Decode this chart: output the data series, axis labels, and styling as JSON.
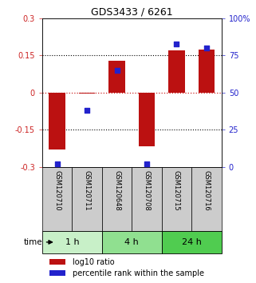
{
  "title": "GDS3433 / 6261",
  "samples": [
    "GSM120710",
    "GSM120711",
    "GSM120648",
    "GSM120708",
    "GSM120715",
    "GSM120716"
  ],
  "log10_ratio": [
    -0.23,
    -0.005,
    0.13,
    -0.215,
    0.17,
    0.175
  ],
  "percentile_rank": [
    2,
    38,
    65,
    2,
    83,
    80
  ],
  "ylim_left": [
    -0.3,
    0.3
  ],
  "ylim_right": [
    0,
    100
  ],
  "yticks_left": [
    -0.3,
    -0.15,
    0,
    0.15,
    0.3
  ],
  "yticks_right": [
    0,
    25,
    50,
    75,
    100
  ],
  "ytick_labels_left": [
    "-0.3",
    "-0.15",
    "0",
    "0.15",
    "0.3"
  ],
  "ytick_labels_right": [
    "0",
    "25",
    "50",
    "75",
    "100%"
  ],
  "groups": [
    {
      "label": "1 h",
      "indices": [
        0,
        1
      ],
      "color": "#c8f0c8"
    },
    {
      "label": "4 h",
      "indices": [
        2,
        3
      ],
      "color": "#90e090"
    },
    {
      "label": "24 h",
      "indices": [
        4,
        5
      ],
      "color": "#50cc50"
    }
  ],
  "bar_color": "#bb1111",
  "dot_color": "#2222cc",
  "bar_width": 0.55,
  "dotted_line_color": "#000000",
  "zero_line_color": "#cc2222",
  "legend_bar_label": "log10 ratio",
  "legend_dot_label": "percentile rank within the sample",
  "left_axis_color": "#cc2222",
  "right_axis_color": "#2222cc",
  "sample_box_color": "#cccccc",
  "time_label": "time",
  "background_color": "#ffffff"
}
